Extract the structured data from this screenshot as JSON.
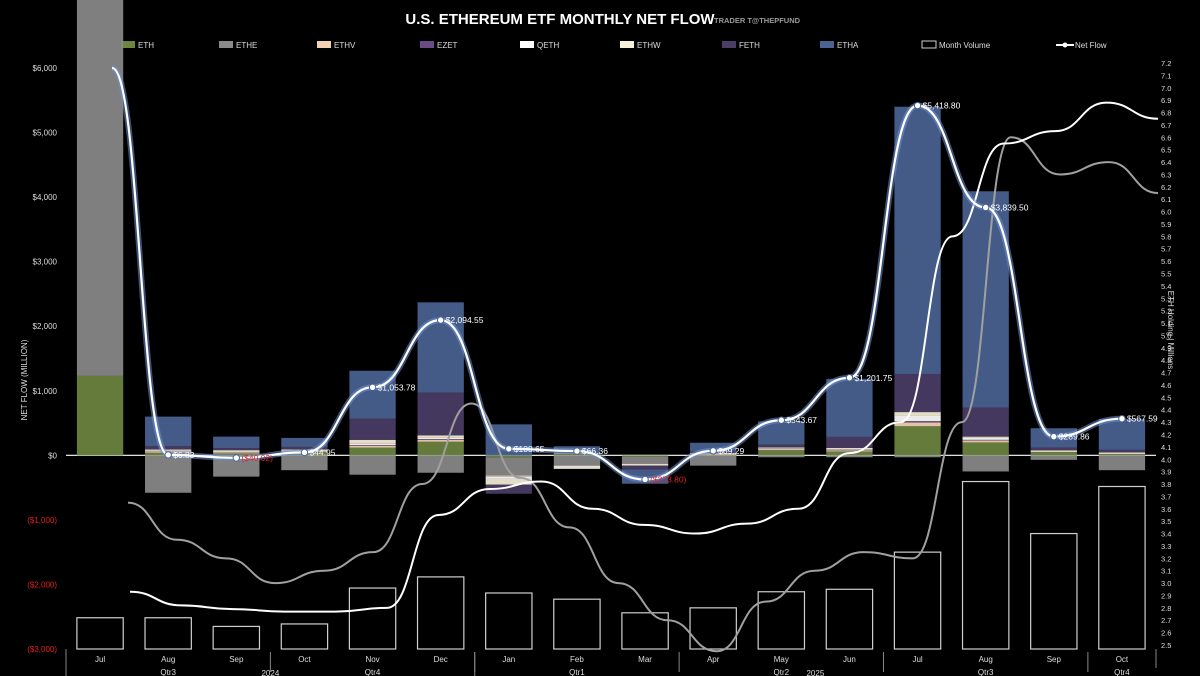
{
  "header": {
    "title": "U.S. ETHEREUM ETF MONTHLY NET FLOW",
    "credit": "TRADER T@THEPFUND"
  },
  "colors": {
    "ETH": "#6e8640",
    "ETHE": "#8a8a8a",
    "ETHV": "#f3d2b4",
    "EZET": "#6a4b86",
    "QETH": "#ffffff",
    "ETHW": "#f6f0d6",
    "FETH": "#4b3d66",
    "ETHA": "#4a6393",
    "volume": "#cfcfcf",
    "netflow": "#ffffff",
    "negative_label": "#e02020"
  },
  "chart_data": {
    "type": "bar",
    "title": "U.S. ETHEREUM ETF MONTHLY NET FLOW",
    "ylabel": "NET FLOW (MILLION)",
    "y2label": "ETH Holding | Millions",
    "ylim": [
      -3000,
      6000
    ],
    "y2lim": [
      2.5,
      7.2
    ],
    "y_ticks": [
      {
        "v": 6000,
        "t": "$6,000"
      },
      {
        "v": 5000,
        "t": "$5,000"
      },
      {
        "v": 4000,
        "t": "$4,000"
      },
      {
        "v": 3000,
        "t": "$3,000"
      },
      {
        "v": 2000,
        "t": "$2,000"
      },
      {
        "v": 1000,
        "t": "$1,000"
      },
      {
        "v": 0,
        "t": "$0"
      },
      {
        "v": -1000,
        "t": "($1,000)"
      },
      {
        "v": -2000,
        "t": "($2,000)"
      },
      {
        "v": -3000,
        "t": "($3,000)"
      }
    ],
    "y2_ticks": [
      "2.5",
      "2.6",
      "2.7",
      "2.8",
      "2.9",
      "3.0",
      "3.1",
      "3.2",
      "3.3",
      "3.4",
      "3.5",
      "3.6",
      "3.7",
      "3.8",
      "3.9",
      "4.0",
      "4.1",
      "4.2",
      "4.3",
      "4.4",
      "4.5",
      "4.6",
      "4.7",
      "4.8",
      "4.9",
      "5.0",
      "5.1",
      "5.2",
      "5.3",
      "5.4",
      "5.5",
      "5.6",
      "5.7",
      "5.8",
      "5.9",
      "6.0",
      "6.1",
      "6.2",
      "6.3",
      "6.4",
      "6.5",
      "6.6",
      "6.7",
      "6.8",
      "6.9",
      "7.0",
      "7.1",
      "7.2"
    ],
    "legend": [
      "ETH",
      "ETHE",
      "ETHV",
      "EZET",
      "QETH",
      "ETHW",
      "FETH",
      "ETHA",
      "Month Volume",
      "Net Flow"
    ],
    "categories": [
      "Jul",
      "Aug",
      "Sep",
      "Oct",
      "Nov",
      "Dec",
      "Jan",
      "Feb",
      "Mar",
      "Apr",
      "May",
      "Jun",
      "Jul",
      "Aug",
      "Sep",
      "Oct"
    ],
    "quarters": [
      {
        "label": "Qtr3",
        "from": 0,
        "to": 2
      },
      {
        "label": "Qtr4",
        "from": 3,
        "to": 5
      },
      {
        "label": "Qtr1",
        "from": 6,
        "to": 8
      },
      {
        "label": "Qtr2",
        "from": 9,
        "to": 11
      },
      {
        "label": "Qtr3",
        "from": 12,
        "to": 14
      },
      {
        "label": "Qtr4",
        "from": 15,
        "to": 15
      }
    ],
    "years": [
      {
        "label": "2024",
        "from": 0,
        "to": 5
      },
      {
        "label": "2025",
        "from": 6,
        "to": 15
      }
    ],
    "series": [
      {
        "name": "ETH",
        "values": [
          1230,
          40,
          30,
          50,
          120,
          210,
          -30,
          20,
          -20,
          10,
          80,
          60,
          450,
          200,
          50,
          20
        ]
      },
      {
        "name": "ETHE",
        "values": [
          6000,
          -580,
          -330,
          -230,
          -300,
          -270,
          -280,
          -160,
          -100,
          -160,
          -30,
          -30,
          -30,
          -250,
          -70,
          -230
        ]
      },
      {
        "name": "ETHV",
        "values": [
          0,
          20,
          20,
          10,
          30,
          30,
          -10,
          10,
          -10,
          10,
          20,
          20,
          60,
          30,
          10,
          10
        ]
      },
      {
        "name": "EZET",
        "values": [
          0,
          5,
          5,
          5,
          10,
          10,
          -5,
          0,
          -5,
          0,
          5,
          5,
          20,
          10,
          0,
          0
        ]
      },
      {
        "name": "QETH",
        "values": [
          0,
          5,
          5,
          5,
          20,
          20,
          -40,
          -20,
          -5,
          5,
          10,
          10,
          80,
          30,
          10,
          5
        ]
      },
      {
        "name": "ETHW",
        "values": [
          0,
          20,
          20,
          20,
          60,
          40,
          -90,
          -30,
          -20,
          10,
          10,
          20,
          60,
          20,
          10,
          10
        ]
      },
      {
        "name": "FETH",
        "values": [
          0,
          50,
          30,
          40,
          330,
          660,
          -140,
          10,
          -60,
          20,
          40,
          170,
          590,
          450,
          40,
          40
        ]
      },
      {
        "name": "ETHA",
        "values": [
          0,
          460,
          180,
          140,
          740,
          1400,
          480,
          100,
          -220,
          140,
          360,
          900,
          4140,
          3350,
          300,
          480
        ]
      }
    ],
    "month_volume": [
      2.72,
      2.72,
      2.65,
      2.67,
      2.96,
      3.05,
      2.92,
      2.87,
      2.76,
      2.8,
      2.93,
      2.95,
      3.25,
      3.82,
      3.4,
      3.78
    ],
    "net_flow": [
      {
        "v": 6000,
        "label": ""
      },
      {
        "v": 6.83,
        "label": "$6.83"
      },
      {
        "v": -40.02,
        "label": "($40.02)"
      },
      {
        "v": 44.95,
        "label": "$44.95"
      },
      {
        "v": 1053.78,
        "label": "$1,053.78"
      },
      {
        "v": 2094.55,
        "label": "$2,094.55"
      },
      {
        "v": 100.65,
        "label": "$100.65"
      },
      {
        "v": 66.36,
        "label": "$66.36"
      },
      {
        "v": -373.8,
        "label": "($373.80)"
      },
      {
        "v": 69.29,
        "label": "$69.29"
      },
      {
        "v": 543.67,
        "label": "$543.67"
      },
      {
        "v": 1201.75,
        "label": "$1,201.75"
      },
      {
        "v": 5418.8,
        "label": "$5,418.80"
      },
      {
        "v": 3839.5,
        "label": "$3,839.50"
      },
      {
        "v": 289.86,
        "label": "$289.86"
      },
      {
        "v": 567.59,
        "label": "$567.59"
      }
    ],
    "eth_holding": [
      2.93,
      2.82,
      2.79,
      2.77,
      2.77,
      2.8,
      3.55,
      3.76,
      3.82,
      3.6,
      3.47,
      3.4,
      3.48,
      3.6,
      4.05,
      4.3,
      5.8,
      6.55,
      6.65,
      6.88,
      6.75
    ],
    "eth_price": [
      3.65,
      3.35,
      3.2,
      3.0,
      3.1,
      3.25,
      3.8,
      4.45,
      3.85,
      3.45,
      3.0,
      2.7,
      2.45,
      2.85,
      3.1,
      3.25,
      3.2,
      4.3,
      6.6,
      6.3,
      6.4,
      6.15
    ]
  }
}
